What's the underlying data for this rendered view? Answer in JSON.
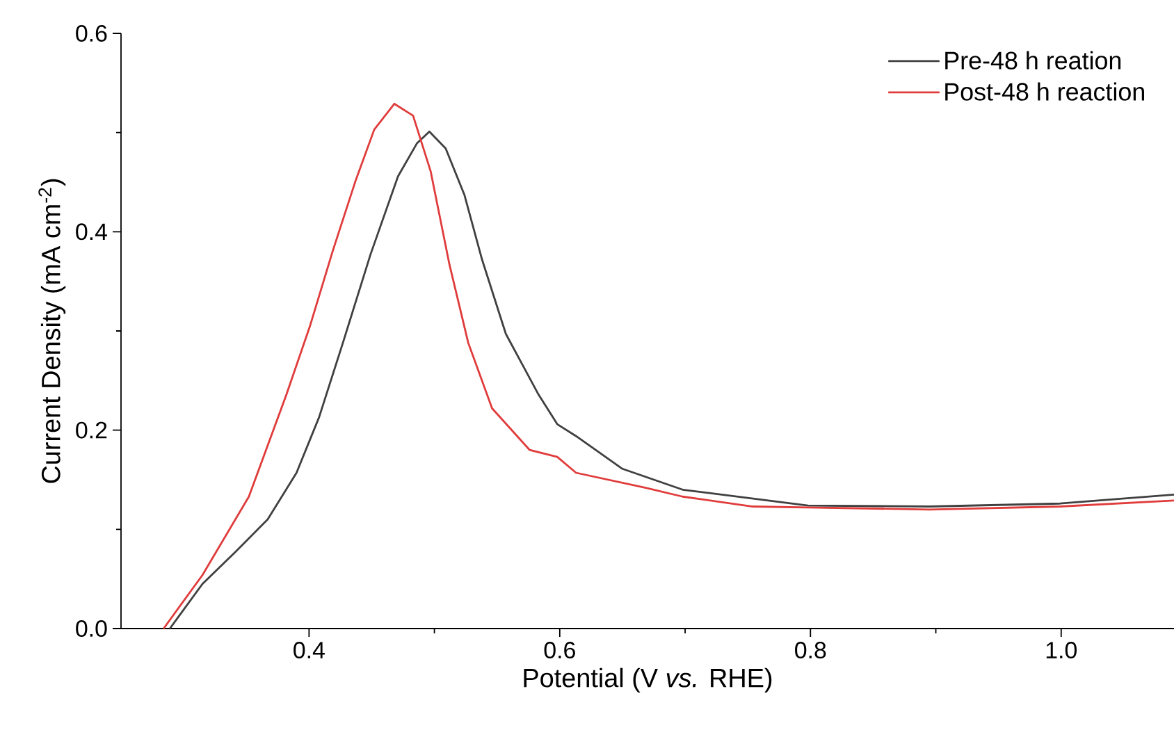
{
  "chart_data": {
    "type": "line",
    "xlabel": "Potential (V *vs.* RHE)",
    "ylabel": "Current Density (mA cm$^{-2}$)",
    "xlim": [
      0.25,
      1.09
    ],
    "ylim": [
      0,
      0.6
    ],
    "xticks": [
      0.4,
      0.6,
      0.8,
      {
        "value": 1.0,
        "label": "1.0"
      }
    ],
    "yticks": [
      {
        "value": 0,
        "label": "0.0"
      },
      0.2,
      0.4,
      0.6
    ],
    "legend": "top right",
    "series": [
      {
        "name": "Pre-48 h reation",
        "color": "#404040",
        "x": [
          0.289,
          0.315,
          0.341,
          0.367,
          0.39,
          0.408,
          0.427,
          0.449,
          0.471,
          0.486,
          0.496,
          0.509,
          0.524,
          0.538,
          0.557,
          0.583,
          0.598,
          0.613,
          0.65,
          0.698,
          0.798,
          0.895,
          0.999,
          1.09
        ],
        "values": [
          0,
          0.045,
          0.077,
          0.11,
          0.157,
          0.213,
          0.288,
          0.377,
          0.456,
          0.489,
          0.501,
          0.484,
          0.437,
          0.372,
          0.297,
          0.236,
          0.206,
          0.194,
          0.161,
          0.14,
          0.124,
          0.123,
          0.126,
          0.135
        ]
      },
      {
        "name": "Post-48 h reaction",
        "color": "#e03c3c",
        "x": [
          0.284,
          0.315,
          0.352,
          0.382,
          0.401,
          0.419,
          0.437,
          0.452,
          0.468,
          0.483,
          0.497,
          0.512,
          0.527,
          0.546,
          0.576,
          0.598,
          0.613,
          0.668,
          0.698,
          0.754,
          0.798,
          0.895,
          0.999,
          1.09
        ],
        "values": [
          0,
          0.054,
          0.133,
          0.236,
          0.306,
          0.381,
          0.451,
          0.503,
          0.529,
          0.517,
          0.461,
          0.367,
          0.288,
          0.222,
          0.18,
          0.173,
          0.157,
          0.142,
          0.133,
          0.123,
          0.122,
          0.12,
          0.123,
          0.129
        ]
      }
    ]
  }
}
